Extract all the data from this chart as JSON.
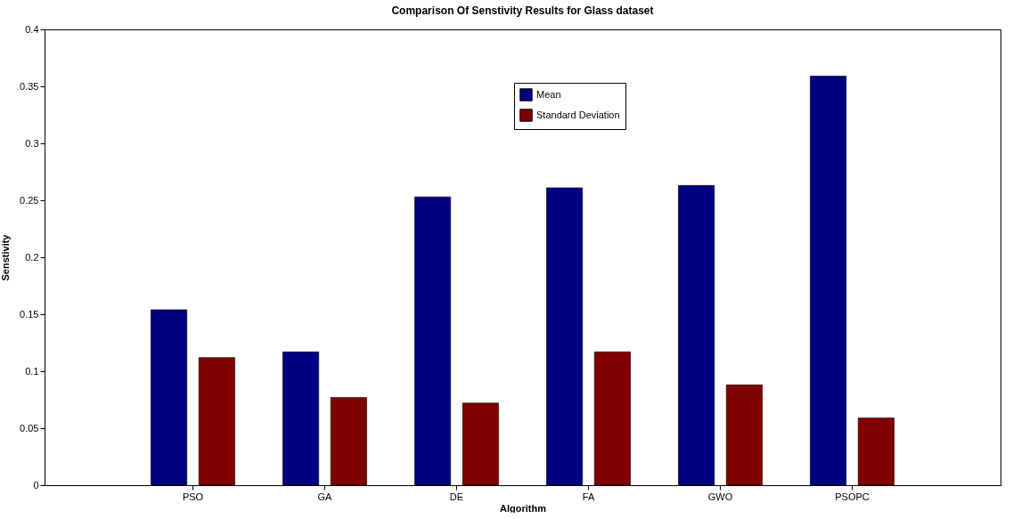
{
  "chart_data": {
    "type": "bar",
    "title": "Comparison Of Senstivity Results for Glass dataset",
    "xlabel": "Algorithm",
    "ylabel": "Senstivity",
    "categories": [
      "PSO",
      "GA",
      "DE",
      "FA",
      "GWO",
      "PSOPC"
    ],
    "series": [
      {
        "name": "Mean",
        "color": "#000080",
        "values": [
          0.154,
          0.117,
          0.253,
          0.261,
          0.263,
          0.359
        ]
      },
      {
        "name": "Standard Deviation",
        "color": "#800000",
        "values": [
          0.112,
          0.077,
          0.072,
          0.117,
          0.088,
          0.059
        ]
      }
    ],
    "ylim": [
      0,
      0.4
    ],
    "yticks": [
      0,
      0.05,
      0.1,
      0.15,
      0.2,
      0.25,
      0.3,
      0.35,
      0.4
    ],
    "grid": false,
    "legend": "top"
  }
}
